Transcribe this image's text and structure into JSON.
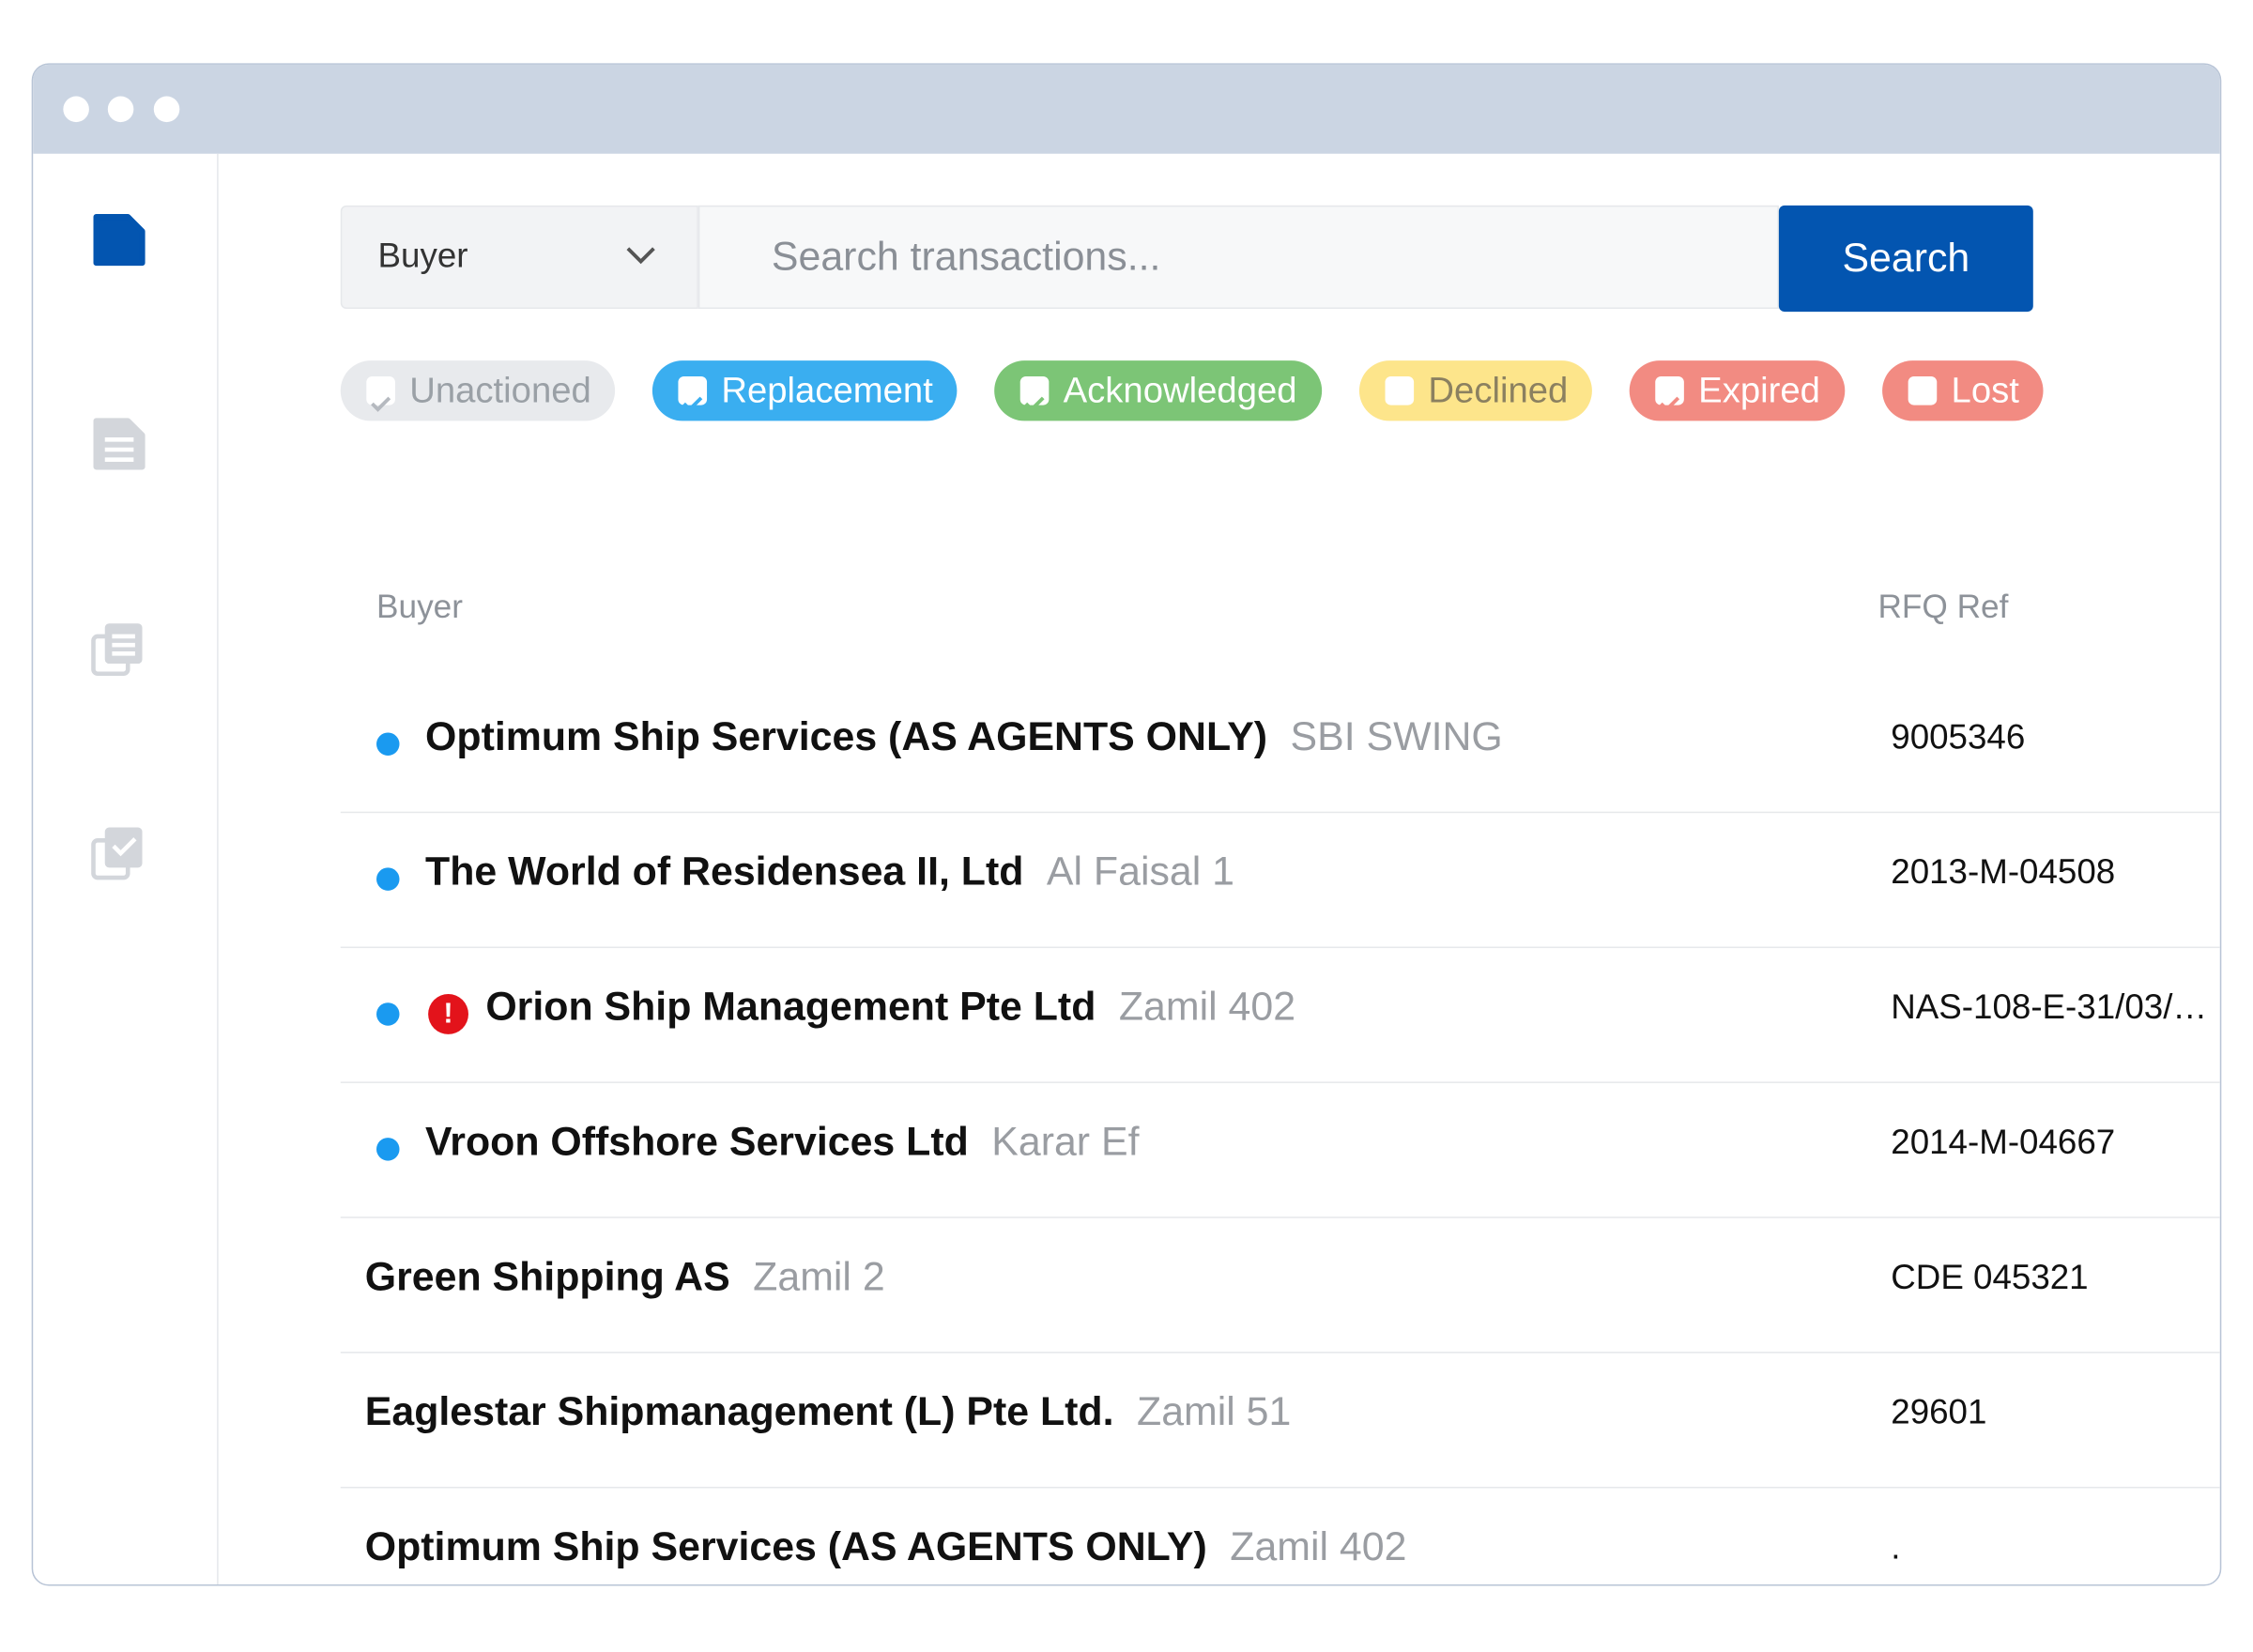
{
  "search": {
    "scope": "Buyer",
    "placeholder": "Search transactions...",
    "button": "Search"
  },
  "filters": [
    {
      "label": "Unactioned",
      "checked": true
    },
    {
      "label": "Replacement",
      "checked": true
    },
    {
      "label": "Acknowledged",
      "checked": true
    },
    {
      "label": "Declined",
      "checked": false
    },
    {
      "label": "Expired",
      "checked": true
    },
    {
      "label": "Lost",
      "checked": false
    }
  ],
  "table": {
    "headers": [
      "Buyer",
      "RFQ Ref"
    ],
    "rows": [
      {
        "unread": true,
        "alert": false,
        "buyer": "Optimum Ship Services (AS AGENTS ONLY)",
        "vessel": "SBI SWING",
        "ref": "9005346"
      },
      {
        "unread": true,
        "alert": false,
        "buyer": "The World of Residensea II, Ltd",
        "vessel": "Al Faisal 1",
        "ref": "2013-M-04508"
      },
      {
        "unread": true,
        "alert": true,
        "buyer": "Orion Ship Management Pte Ltd",
        "vessel": "Zamil 402",
        "ref": "NAS-108-E-31/03/…"
      },
      {
        "unread": true,
        "alert": false,
        "buyer": "Vroon Offshore Services Ltd",
        "vessel": "Karar Ef",
        "ref": "2014-M-04667"
      },
      {
        "unread": false,
        "alert": false,
        "buyer": "Green Shipping AS",
        "vessel": "Zamil 2",
        "ref": "CDE 045321"
      },
      {
        "unread": false,
        "alert": false,
        "buyer": "Eaglestar Shipmanagement (L) Pte Ltd.",
        "vessel": "Zamil 51",
        "ref": "29601"
      },
      {
        "unread": false,
        "alert": false,
        "buyer": "Optimum Ship Services (AS AGENTS ONLY)",
        "vessel": "Zamil 402",
        "ref": "."
      }
    ]
  }
}
